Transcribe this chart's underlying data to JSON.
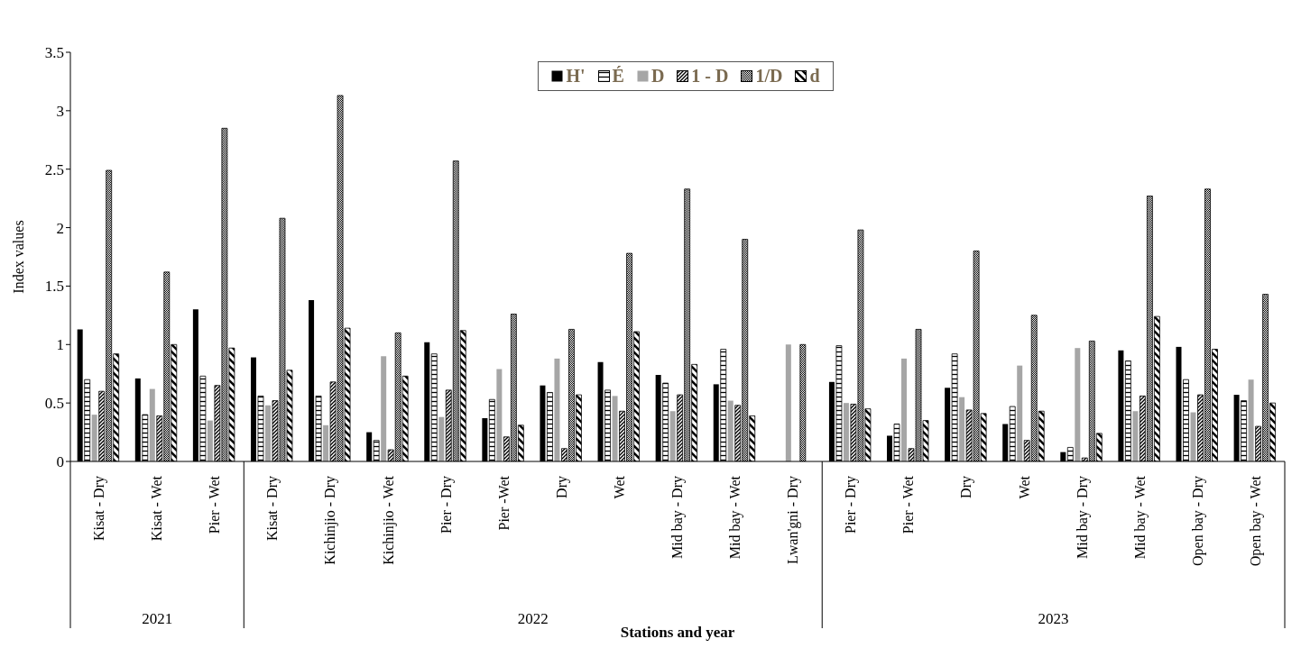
{
  "chart_data": {
    "type": "bar",
    "xlabel": "Stations and year",
    "ylabel": "Index values",
    "categories": [
      "Kisat - Dry",
      "Kisat - Wet",
      "Pier - Wet",
      "Kisat - Dry",
      "Kichinjio - Dry",
      "Kichinjio - Wet",
      "Pier - Dry",
      "Pier -Wet",
      "Dry",
      "Wet",
      "Mid bay - Dry",
      "Mid bay - Wet",
      "Lwan'gni - Dry",
      "Pier - Dry",
      "Pier - Wet",
      "Dry",
      "Wet",
      "Mid bay - Dry",
      "Mid bay - Wet",
      "Open bay - Dry",
      "Open bay - Wet"
    ],
    "series": [
      {
        "name": "H'",
        "color": "#000000",
        "values": [
          1.13,
          0.71,
          1.3,
          0.89,
          1.38,
          0.25,
          1.02,
          0.37,
          0.65,
          0.85,
          0.74,
          0.66,
          0,
          0.68,
          0.22,
          0.63,
          0.32,
          0.08,
          0.95,
          0.98,
          0.57
        ]
      },
      {
        "name": "É",
        "color": "#000000",
        "values": [
          0.7,
          0.4,
          0.73,
          0.56,
          0.56,
          0.18,
          0.92,
          0.53,
          0.59,
          0.61,
          0.67,
          0.96,
          0,
          0.99,
          0.32,
          0.92,
          0.47,
          0.12,
          0.86,
          0.7,
          0.52
        ]
      },
      {
        "name": "D",
        "color": "#a6a6a6",
        "values": [
          0.4,
          0.62,
          0.35,
          0.48,
          0.31,
          0.9,
          0.38,
          0.79,
          0.88,
          0.56,
          0.43,
          0.52,
          1.0,
          0.5,
          0.88,
          0.55,
          0.82,
          0.97,
          0.43,
          0.42,
          0.7
        ]
      },
      {
        "name": "1 - D",
        "color": "#000000",
        "values": [
          0.6,
          0.39,
          0.65,
          0.52,
          0.68,
          0.1,
          0.61,
          0.21,
          0.11,
          0.43,
          0.57,
          0.48,
          0,
          0.49,
          0.11,
          0.44,
          0.18,
          0.03,
          0.56,
          0.57,
          0.3
        ]
      },
      {
        "name": "1/D",
        "color": "#000000",
        "values": [
          2.49,
          1.62,
          2.85,
          2.08,
          3.13,
          1.1,
          2.57,
          1.26,
          1.13,
          1.78,
          2.33,
          1.9,
          1.0,
          1.98,
          1.13,
          1.8,
          1.25,
          1.03,
          2.27,
          2.33,
          1.43
        ]
      },
      {
        "name": "d",
        "color": "#000000",
        "values": [
          0.92,
          1.0,
          0.97,
          0.78,
          1.14,
          0.73,
          1.12,
          0.31,
          0.57,
          1.11,
          0.83,
          0.39,
          0,
          0.45,
          0.35,
          0.41,
          0.43,
          0.24,
          1.24,
          0.96,
          0.5
        ]
      }
    ],
    "ylim": [
      0,
      3.5
    ],
    "yticks": [
      0,
      0.5,
      1,
      1.5,
      2,
      2.5,
      3,
      3.5
    ],
    "grid": false,
    "legend": "top",
    "annotations": [
      "2021",
      "2022",
      "2023"
    ]
  }
}
